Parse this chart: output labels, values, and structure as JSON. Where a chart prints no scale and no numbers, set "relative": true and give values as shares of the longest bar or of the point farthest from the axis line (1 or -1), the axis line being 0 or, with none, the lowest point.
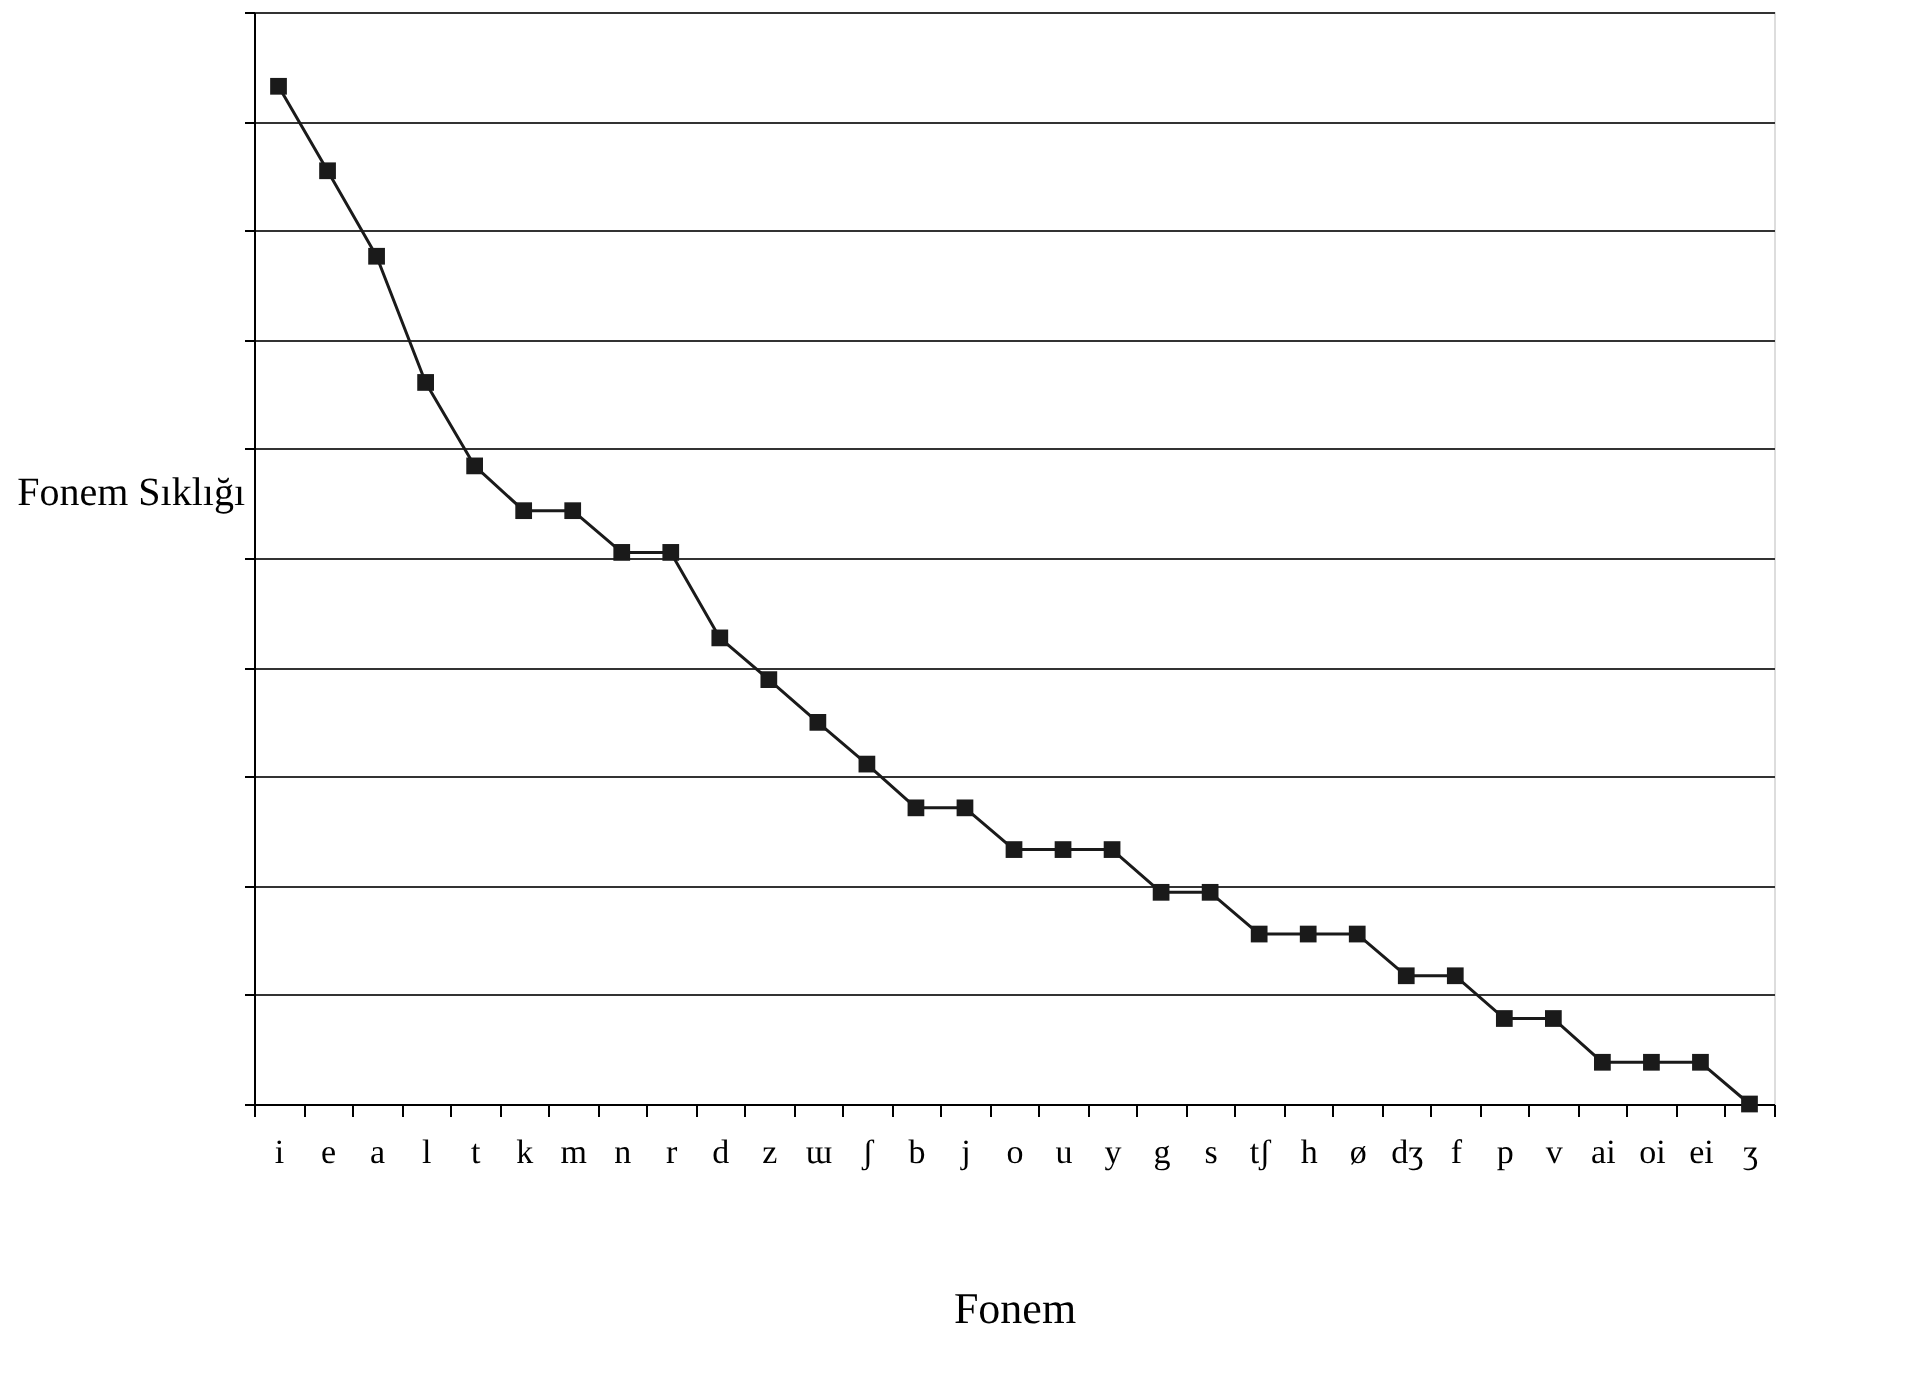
{
  "chart_data": {
    "type": "line",
    "xlabel": "Fonem",
    "ylabel": "Fonem Sıklığı",
    "relative": true,
    "categories": [
      "i",
      "e",
      "a",
      "l",
      "t",
      "k",
      "m",
      "n",
      "r",
      "d",
      "z",
      "ɯ",
      "ʃ",
      "b",
      "j",
      "o",
      "u",
      "y",
      "g",
      "s",
      "tʃ",
      "h",
      "ø",
      "dʒ",
      "f",
      "p",
      "v",
      "ai",
      "oi",
      "ei",
      "ʒ"
    ],
    "series": [
      {
        "color": "#1a1a1a",
        "values": [
          1,
          0.917,
          0.833,
          0.709,
          0.627,
          0.583,
          0.583,
          0.542,
          0.542,
          0.458,
          0.417,
          0.375,
          0.334,
          0.291,
          0.291,
          0.25,
          0.25,
          0.25,
          0.208,
          0.208,
          0.167,
          0.167,
          0.167,
          0.126,
          0.126,
          0.084,
          0.084,
          0.041,
          0.041,
          0.041,
          0
        ]
      }
    ],
    "grid": "y",
    "marker": "square",
    "line_style": "solid"
  }
}
